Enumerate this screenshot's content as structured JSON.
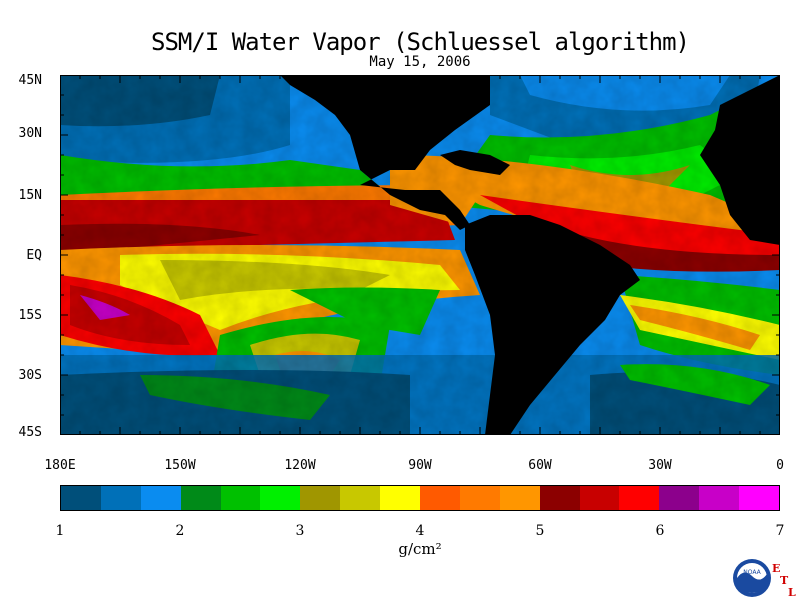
{
  "title": "SSM/I Water Vapor (Schluessel algorithm)",
  "date": "May 15, 2006",
  "lat_labels": [
    "45N",
    "30N",
    "15N",
    "EQ",
    "15S",
    "30S",
    "45S"
  ],
  "lon_labels": [
    "180E",
    "150W",
    "120W",
    "90W",
    "60W",
    "30W",
    "0"
  ],
  "colorbar": {
    "units": "g/cm²",
    "tick_labels": [
      "1",
      "2",
      "3",
      "4",
      "5",
      "6",
      "7"
    ],
    "colors": [
      "#004f7a",
      "#0070b8",
      "#0a8cf0",
      "#008a18",
      "#00c000",
      "#00f000",
      "#a09600",
      "#c8c800",
      "#ffff00",
      "#ff5a00",
      "#ff7a00",
      "#ff9600",
      "#8c0000",
      "#c80000",
      "#ff0000",
      "#8c008c",
      "#c800c8",
      "#ff00ff"
    ]
  },
  "logo": {
    "noaa_text": "NOAA",
    "etl_text": "ETL"
  }
}
